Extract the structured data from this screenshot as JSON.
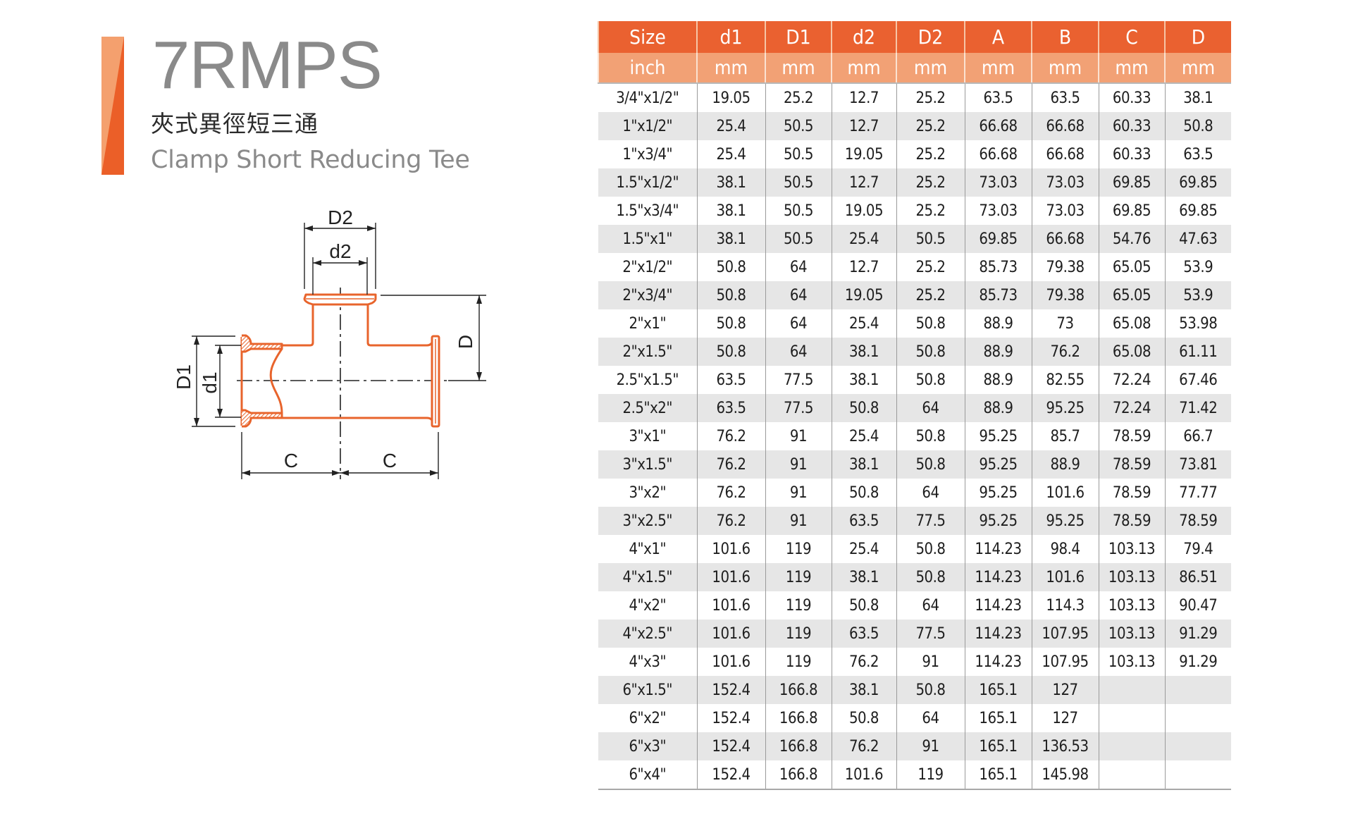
{
  "header": {
    "model_code": "7RMPS",
    "title_zh": "夾式異徑短三通",
    "title_en": "Clamp Short Reducing Tee",
    "accent_colors": {
      "light": "#f4a06e",
      "dark": "#eb5f28"
    }
  },
  "diagram": {
    "labels": {
      "D2": "D2",
      "d2": "d2",
      "D": "D",
      "D1": "D1",
      "d1": "d1",
      "C_left": "C",
      "C_right": "C"
    },
    "line_color": "#e8642c"
  },
  "table": {
    "header_color": "#ea6130",
    "subheader_color": "#f2a175",
    "columns": [
      {
        "name": "Size",
        "unit": "inch"
      },
      {
        "name": "d1",
        "unit": "mm"
      },
      {
        "name": "D1",
        "unit": "mm"
      },
      {
        "name": "d2",
        "unit": "mm"
      },
      {
        "name": "D2",
        "unit": "mm"
      },
      {
        "name": "A",
        "unit": "mm"
      },
      {
        "name": "B",
        "unit": "mm"
      },
      {
        "name": "C",
        "unit": "mm"
      },
      {
        "name": "D",
        "unit": "mm"
      }
    ],
    "rows": [
      [
        "3/4\"x1/2\"",
        "19.05",
        "25.2",
        "12.7",
        "25.2",
        "63.5",
        "63.5",
        "60.33",
        "38.1"
      ],
      [
        "1\"x1/2\"",
        "25.4",
        "50.5",
        "12.7",
        "25.2",
        "66.68",
        "66.68",
        "60.33",
        "50.8"
      ],
      [
        "1\"x3/4\"",
        "25.4",
        "50.5",
        "19.05",
        "25.2",
        "66.68",
        "66.68",
        "60.33",
        "63.5"
      ],
      [
        "1.5\"x1/2\"",
        "38.1",
        "50.5",
        "12.7",
        "25.2",
        "73.03",
        "73.03",
        "69.85",
        "69.85"
      ],
      [
        "1.5\"x3/4\"",
        "38.1",
        "50.5",
        "19.05",
        "25.2",
        "73.03",
        "73.03",
        "69.85",
        "69.85"
      ],
      [
        "1.5\"x1\"",
        "38.1",
        "50.5",
        "25.4",
        "50.5",
        "69.85",
        "66.68",
        "54.76",
        "47.63"
      ],
      [
        "2\"x1/2\"",
        "50.8",
        "64",
        "12.7",
        "25.2",
        "85.73",
        "79.38",
        "65.05",
        "53.9"
      ],
      [
        "2\"x3/4\"",
        "50.8",
        "64",
        "19.05",
        "25.2",
        "85.73",
        "79.38",
        "65.05",
        "53.9"
      ],
      [
        "2\"x1\"",
        "50.8",
        "64",
        "25.4",
        "50.8",
        "88.9",
        "73",
        "65.08",
        "53.98"
      ],
      [
        "2\"x1.5\"",
        "50.8",
        "64",
        "38.1",
        "50.8",
        "88.9",
        "76.2",
        "65.08",
        "61.11"
      ],
      [
        "2.5\"x1.5\"",
        "63.5",
        "77.5",
        "38.1",
        "50.8",
        "88.9",
        "82.55",
        "72.24",
        "67.46"
      ],
      [
        "2.5\"x2\"",
        "63.5",
        "77.5",
        "50.8",
        "64",
        "88.9",
        "95.25",
        "72.24",
        "71.42"
      ],
      [
        "3\"x1\"",
        "76.2",
        "91",
        "25.4",
        "50.8",
        "95.25",
        "85.7",
        "78.59",
        "66.7"
      ],
      [
        "3\"x1.5\"",
        "76.2",
        "91",
        "38.1",
        "50.8",
        "95.25",
        "88.9",
        "78.59",
        "73.81"
      ],
      [
        "3\"x2\"",
        "76.2",
        "91",
        "50.8",
        "64",
        "95.25",
        "101.6",
        "78.59",
        "77.77"
      ],
      [
        "3\"x2.5\"",
        "76.2",
        "91",
        "63.5",
        "77.5",
        "95.25",
        "95.25",
        "78.59",
        "78.59"
      ],
      [
        "4\"x1\"",
        "101.6",
        "119",
        "25.4",
        "50.8",
        "114.23",
        "98.4",
        "103.13",
        "79.4"
      ],
      [
        "4\"x1.5\"",
        "101.6",
        "119",
        "38.1",
        "50.8",
        "114.23",
        "101.6",
        "103.13",
        "86.51"
      ],
      [
        "4\"x2\"",
        "101.6",
        "119",
        "50.8",
        "64",
        "114.23",
        "114.3",
        "103.13",
        "90.47"
      ],
      [
        "4\"x2.5\"",
        "101.6",
        "119",
        "63.5",
        "77.5",
        "114.23",
        "107.95",
        "103.13",
        "91.29"
      ],
      [
        "4\"x3\"",
        "101.6",
        "119",
        "76.2",
        "91",
        "114.23",
        "107.95",
        "103.13",
        "91.29"
      ],
      [
        "6\"x1.5\"",
        "152.4",
        "166.8",
        "38.1",
        "50.8",
        "165.1",
        "127",
        "",
        ""
      ],
      [
        "6\"x2\"",
        "152.4",
        "166.8",
        "50.8",
        "64",
        "165.1",
        "127",
        "",
        ""
      ],
      [
        "6\"x3\"",
        "152.4",
        "166.8",
        "76.2",
        "91",
        "165.1",
        "136.53",
        "",
        ""
      ],
      [
        "6\"x4\"",
        "152.4",
        "166.8",
        "101.6",
        "119",
        "165.1",
        "145.98",
        "",
        ""
      ]
    ]
  }
}
